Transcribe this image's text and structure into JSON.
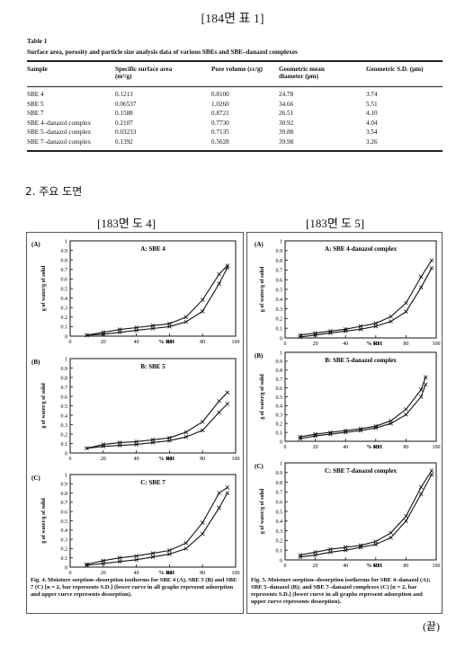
{
  "header_top": "[184면 표 1]",
  "table": {
    "label": "Table 1",
    "caption": "Surface area, porosity and particle size analysis data of various SBEs and SBE–danazol complexes",
    "columns": [
      "Sample",
      "Specific surface area (m²/g)",
      "Pore volume (cc/g)",
      "Geometric mean diameter (μm)",
      "Geometric S.D. (μm)"
    ],
    "rows": [
      [
        "SBE 4",
        "0.1213",
        "0.8100",
        "24.78",
        "3.74"
      ],
      [
        "SBE 5",
        "0.06537",
        "1.0260",
        "34.66",
        "5.51"
      ],
      [
        "SBE 7",
        "0.1588",
        "0.8721",
        "26.51",
        "4.10"
      ],
      [
        "SBE 4–danazol complex",
        "0.2107",
        "0.7730",
        "30.92",
        "4.04"
      ],
      [
        "SBE 5–danazol complex",
        "0.03233",
        "0.7135",
        "39.88",
        "3.54"
      ],
      [
        "SBE 7–danazol complex",
        "0.1392",
        "0.5628",
        "39.98",
        "3.26"
      ]
    ]
  },
  "section_title": "2. 주요 도면",
  "fig_left_header": "[183면 도 4]",
  "fig_right_header": "[183면 도 5]",
  "axis": {
    "ylabel": "g of water/g of solid",
    "xlabel": "% RH"
  },
  "chart_data": [
    {
      "type": "line",
      "letter": "(A)",
      "title": "A: SBE 4",
      "xlim": [
        0,
        100
      ],
      "ylim": [
        0,
        1
      ],
      "xticks": [
        0,
        20,
        40,
        60,
        80,
        100
      ],
      "yticks": [
        0,
        0.1,
        0.2,
        0.3,
        0.4,
        0.5,
        0.6,
        0.7,
        0.8,
        0.9,
        1
      ],
      "series": [
        {
          "x": [
            10,
            20,
            30,
            40,
            50,
            60,
            70,
            80,
            90,
            95
          ],
          "y": [
            0.01,
            0.02,
            0.04,
            0.06,
            0.08,
            0.1,
            0.15,
            0.26,
            0.55,
            0.72
          ]
        },
        {
          "x": [
            10,
            20,
            30,
            40,
            50,
            60,
            70,
            80,
            90,
            95
          ],
          "y": [
            0.01,
            0.04,
            0.07,
            0.09,
            0.11,
            0.13,
            0.2,
            0.38,
            0.65,
            0.74
          ]
        }
      ]
    },
    {
      "type": "line",
      "letter": "(B)",
      "title": "B: SBE 5",
      "xlim": [
        0,
        100
      ],
      "ylim": [
        0,
        1
      ],
      "xticks": [
        0,
        20,
        40,
        60,
        80,
        100
      ],
      "yticks": [
        0,
        0.1,
        0.2,
        0.3,
        0.4,
        0.5,
        0.6,
        0.7,
        0.8,
        0.9,
        1
      ],
      "series": [
        {
          "x": [
            10,
            20,
            30,
            40,
            50,
            60,
            70,
            80,
            90,
            95
          ],
          "y": [
            0.05,
            0.07,
            0.08,
            0.09,
            0.11,
            0.13,
            0.17,
            0.24,
            0.43,
            0.52
          ]
        },
        {
          "x": [
            10,
            20,
            30,
            40,
            50,
            60,
            70,
            80,
            90,
            95
          ],
          "y": [
            0.05,
            0.09,
            0.11,
            0.12,
            0.14,
            0.16,
            0.22,
            0.33,
            0.55,
            0.64
          ]
        }
      ]
    },
    {
      "type": "line",
      "letter": "(C)",
      "title": "C: SBE 7",
      "xlim": [
        0,
        100
      ],
      "ylim": [
        0,
        1
      ],
      "xticks": [
        0,
        20,
        40,
        60,
        80,
        100
      ],
      "yticks": [
        0,
        0.1,
        0.2,
        0.3,
        0.4,
        0.5,
        0.6,
        0.7,
        0.8,
        0.9,
        1
      ],
      "series": [
        {
          "x": [
            10,
            20,
            30,
            40,
            50,
            60,
            70,
            80,
            90,
            95
          ],
          "y": [
            0.02,
            0.04,
            0.06,
            0.08,
            0.11,
            0.14,
            0.2,
            0.36,
            0.64,
            0.8
          ]
        },
        {
          "x": [
            10,
            20,
            30,
            40,
            50,
            60,
            70,
            80,
            90,
            95
          ],
          "y": [
            0.03,
            0.07,
            0.1,
            0.12,
            0.15,
            0.18,
            0.26,
            0.48,
            0.8,
            0.86
          ]
        }
      ]
    },
    {
      "type": "line",
      "letter": "(A)",
      "title": "A: SBE 4-danazol complex",
      "xlim": [
        0,
        100
      ],
      "ylim": [
        0,
        1
      ],
      "xticks": [
        0,
        20,
        40,
        60,
        80,
        100
      ],
      "yticks": [
        0,
        0.1,
        0.2,
        0.3,
        0.4,
        0.5,
        0.6,
        0.7,
        0.8,
        0.9,
        1
      ],
      "series": [
        {
          "x": [
            10,
            20,
            30,
            40,
            50,
            60,
            70,
            80,
            90,
            97
          ],
          "y": [
            0.01,
            0.03,
            0.05,
            0.07,
            0.09,
            0.12,
            0.17,
            0.27,
            0.52,
            0.72
          ]
        },
        {
          "x": [
            10,
            20,
            30,
            40,
            50,
            60,
            70,
            80,
            90,
            97
          ],
          "y": [
            0.03,
            0.05,
            0.07,
            0.09,
            0.12,
            0.15,
            0.22,
            0.36,
            0.63,
            0.8
          ]
        }
      ]
    },
    {
      "type": "line",
      "letter": "(B)",
      "title": "B: SBE 5-danazol complex",
      "xlim": [
        0,
        100
      ],
      "ylim": [
        0,
        1
      ],
      "xticks": [
        0,
        20,
        40,
        60,
        80,
        100
      ],
      "yticks": [
        0,
        0.1,
        0.2,
        0.3,
        0.4,
        0.5,
        0.6,
        0.7,
        0.8,
        0.9,
        1
      ],
      "series": [
        {
          "x": [
            10,
            20,
            30,
            40,
            50,
            60,
            70,
            80,
            90,
            93
          ],
          "y": [
            0.03,
            0.06,
            0.08,
            0.1,
            0.12,
            0.15,
            0.2,
            0.3,
            0.5,
            0.64
          ]
        },
        {
          "x": [
            10,
            20,
            30,
            40,
            50,
            60,
            70,
            80,
            90,
            93
          ],
          "y": [
            0.05,
            0.08,
            0.1,
            0.12,
            0.14,
            0.17,
            0.23,
            0.36,
            0.58,
            0.72
          ]
        }
      ]
    },
    {
      "type": "line",
      "letter": "(C)",
      "title": "C: SBE 7-danazol complex",
      "xlim": [
        0,
        100
      ],
      "ylim": [
        0,
        1
      ],
      "xticks": [
        0,
        20,
        40,
        60,
        80,
        100
      ],
      "yticks": [
        0,
        0.1,
        0.2,
        0.3,
        0.4,
        0.5,
        0.6,
        0.7,
        0.8,
        0.9,
        1
      ],
      "series": [
        {
          "x": [
            10,
            20,
            30,
            40,
            50,
            60,
            70,
            80,
            90,
            97
          ],
          "y": [
            0.03,
            0.05,
            0.08,
            0.1,
            0.13,
            0.16,
            0.23,
            0.4,
            0.68,
            0.88
          ]
        },
        {
          "x": [
            10,
            20,
            30,
            40,
            50,
            60,
            70,
            80,
            90,
            97
          ],
          "y": [
            0.05,
            0.08,
            0.11,
            0.13,
            0.15,
            0.19,
            0.28,
            0.45,
            0.75,
            0.92
          ]
        }
      ]
    }
  ],
  "fig4_caption": "Fig. 4. Moisture sorption–desorption isotherms for SBE 4 (A), SBE 5 (B) and SBE 7 (C) [n = 2, bar represents S.D.] (lower curve in all graphs represent adsorption and upper curve represents desorption).",
  "fig5_caption": "Fig. 5. Moisture sorption–desorption isotherms for SBE 4–danazol (A); SBE 5–danazol (B); and SBE 7–danazol complexes (C) [n = 2, bar represents S.D.] (lower curve in all graphs represent adsorption and upper curve represents desorption).",
  "end_mark": "(끝)"
}
